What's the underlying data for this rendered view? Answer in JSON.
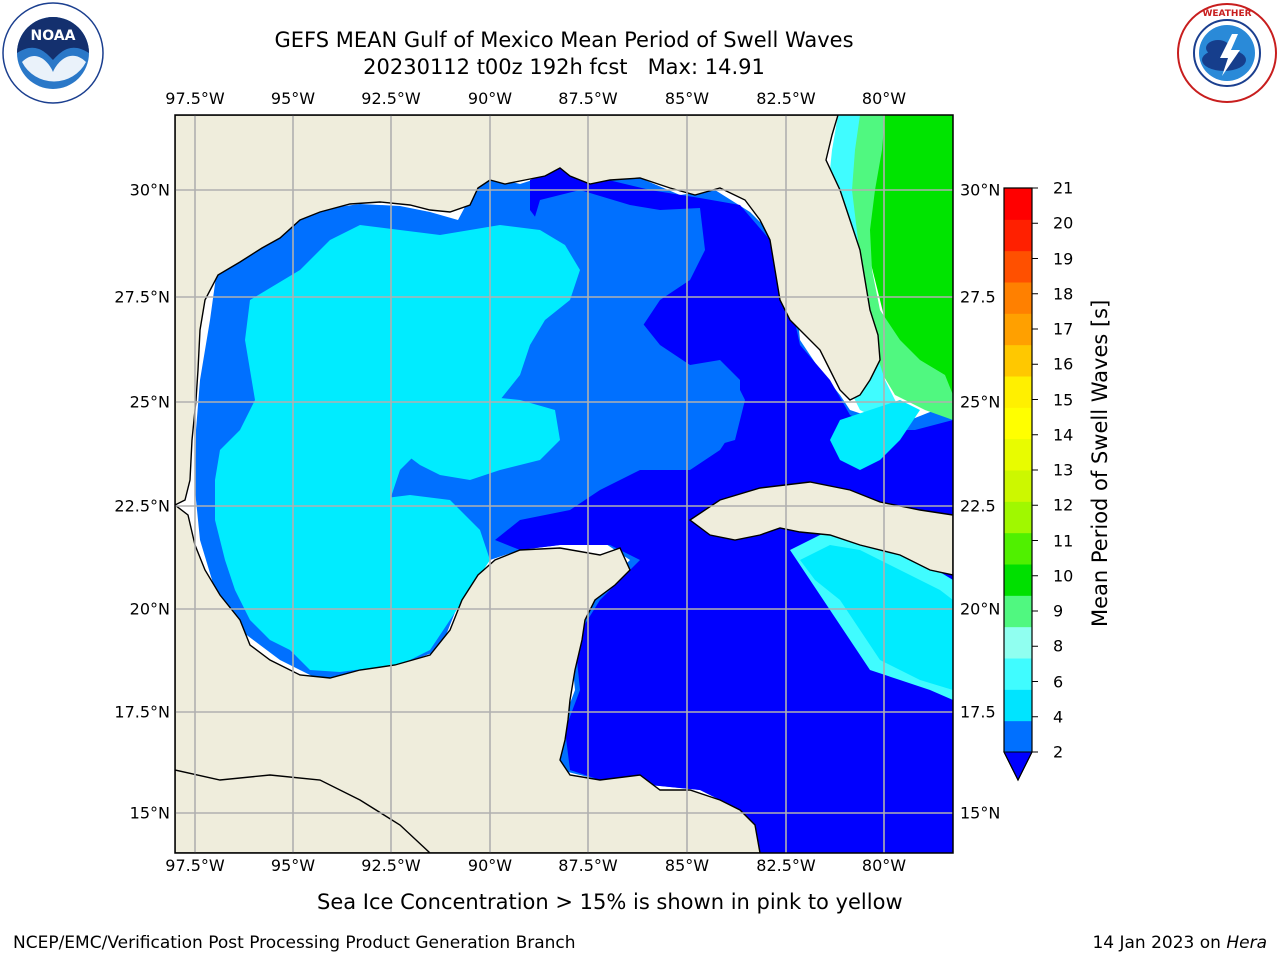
{
  "header": {
    "title_line1": "GEFS MEAN Gulf of Mexico Mean Period of Swell Waves",
    "title_line2": "20230112 t00z 192h fcst   Max: 14.91"
  },
  "logos": {
    "left": {
      "name": "NOAA",
      "ring_text": "NATIONAL OCEANIC AND ATMOSPHERIC ADMINISTRATION",
      "bottom_text": "U.S. DEPARTMENT OF COMMERCE"
    },
    "right": {
      "ring_text": "NATIONAL WEATHER SERVICE"
    }
  },
  "map": {
    "lon_top_labels": [
      "97.5°W",
      "95°W",
      "92.5°W",
      "90°W",
      "87.5°W",
      "85°W",
      "82.5°W",
      "80°W"
    ],
    "lon_bottom_labels": [
      "97.5°W",
      "95°W",
      "92.5°W",
      "90°W",
      "87.5°W",
      "85°W",
      "82.5°W",
      "80°W"
    ],
    "lat_left_labels": [
      "30°N",
      "27.5°N",
      "25°N",
      "22.5°N",
      "20°N",
      "17.5°N",
      "15°N"
    ],
    "lat_right_labels": [
      "30°N",
      "27.5",
      "25°N",
      "22.5",
      "20°N",
      "17.5",
      "15°N"
    ],
    "colors": {
      "land": "#efeddc",
      "no_data": "#ffffff",
      "grid": "#b0b0b0",
      "coast": "#000000"
    }
  },
  "colorbar": {
    "label": "Mean Period of Swell Waves [s]",
    "ticks": [
      "21",
      "20",
      "19",
      "18",
      "17",
      "16",
      "15",
      "14",
      "13",
      "12",
      "11",
      "10",
      "9",
      "8",
      "6",
      "4",
      "2"
    ],
    "colors_bottom_to_top": [
      "#0070ff",
      "#00e4ff",
      "#40fcff",
      "#90fff0",
      "#50f880",
      "#00e000",
      "#50f000",
      "#a0f800",
      "#ccf800",
      "#e8fc00",
      "#ffff00",
      "#fff000",
      "#ffc800",
      "#ffa000",
      "#ff8000",
      "#ff5000",
      "#ff2000",
      "#ff0000"
    ],
    "extend_color": "#0000ff"
  },
  "caption": "Sea Ice Concentration > 15% is shown in pink to yellow",
  "footer": {
    "left": "NCEP/EMC/Verification Post Processing Product Generation Branch",
    "right_date": "14 Jan 2023 on ",
    "right_host": "Hera"
  }
}
